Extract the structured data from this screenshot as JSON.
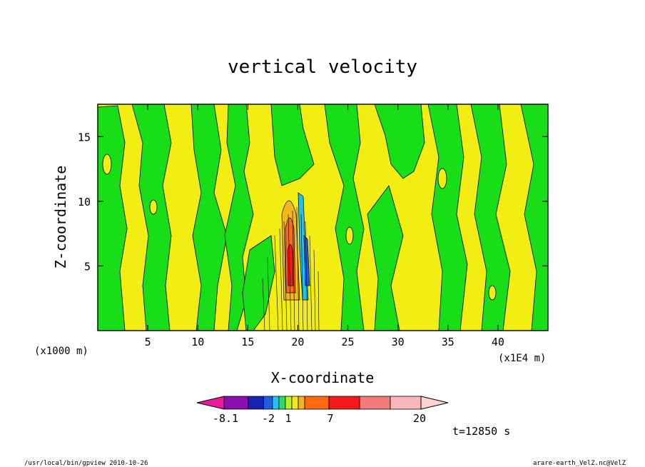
{
  "chart_data": {
    "type": "heatmap",
    "title": "vertical velocity",
    "xlabel": "X-coordinate",
    "ylabel": "Z-coordinate",
    "x_unit": "(x1E4 m)",
    "z_unit": "(x1000 m)",
    "xlim": [
      0,
      45
    ],
    "ylim": [
      0,
      17.5
    ],
    "x_ticks": [
      5,
      10,
      15,
      20,
      25,
      30,
      35,
      40
    ],
    "x_tick_labels": [
      "5",
      "10",
      "15",
      "20",
      "25",
      "30",
      "35",
      "40"
    ],
    "y_ticks": [
      5,
      10,
      15
    ],
    "y_tick_labels": [
      "5",
      "10",
      "15"
    ],
    "grid": false,
    "colorbar": {
      "colors": [
        "#e8199b",
        "#8a0fb0",
        "#1a22b0",
        "#1f5ee0",
        "#1ec3f5",
        "#2ed86d",
        "#b6f21e",
        "#f5e81a",
        "#f5b81a",
        "#ff6a10",
        "#f5181a",
        "#f57a7a",
        "#f8b8b8",
        "#fbd2d2"
      ],
      "tick_labels": [
        "-8.1",
        "-2",
        "1",
        "7",
        "20"
      ]
    },
    "time_label": "t=12850 s",
    "convective_core": {
      "x_center": 20.5,
      "z_top": 10.5,
      "min_value": -8.1,
      "max_value": 20
    }
  },
  "footer": {
    "left": "/usr/local/bin/gpview   2010-10-26",
    "right": "arare-earth_VelZ.nc@VelZ"
  }
}
